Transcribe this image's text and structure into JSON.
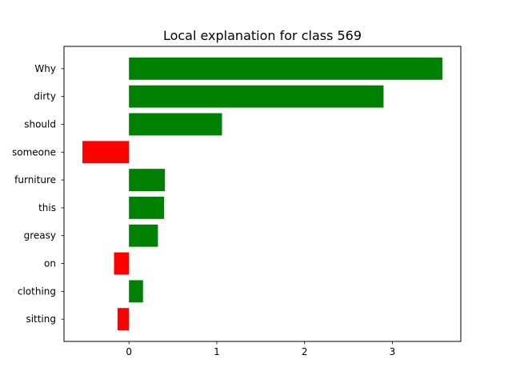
{
  "chart_data": {
    "type": "bar",
    "orientation": "horizontal",
    "title": "Local explanation for class 569",
    "xlabel": "",
    "ylabel": "",
    "categories": [
      "Why",
      "dirty",
      "should",
      "someone",
      "furniture",
      "this",
      "greasy",
      "on",
      "clothing",
      "sitting"
    ],
    "values": [
      3.57,
      2.9,
      1.06,
      -0.53,
      0.41,
      0.4,
      0.33,
      -0.17,
      0.16,
      -0.13
    ],
    "xlim": [
      -0.74,
      3.78
    ],
    "xticks": [
      0,
      1,
      2,
      3
    ],
    "xtick_labels": [
      "0",
      "1",
      "2",
      "3"
    ],
    "grid": false,
    "colors": {
      "positive": "#008000",
      "negative": "#ff0000"
    }
  }
}
